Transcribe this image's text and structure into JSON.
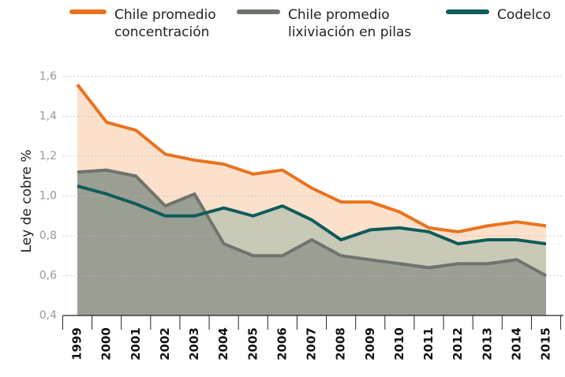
{
  "chart_data": {
    "type": "line",
    "y_label": "Ley de cobre %",
    "categories": [
      "1999",
      "2000",
      "2001",
      "2002",
      "2003",
      "2004",
      "2005",
      "2006",
      "2007",
      "2008",
      "2009",
      "2010",
      "2011",
      "2012",
      "2013",
      "2014",
      "2015"
    ],
    "series": [
      {
        "name": "Chile promedio concentración",
        "color": "#e8731e",
        "fill": "#fbe0cc",
        "values": [
          1.56,
          1.37,
          1.33,
          1.21,
          1.18,
          1.16,
          1.11,
          1.13,
          1.04,
          0.97,
          0.97,
          0.92,
          0.84,
          0.82,
          0.85,
          0.87,
          0.85
        ]
      },
      {
        "name": "Chile promedio lixiviación en pilas",
        "color": "#6f736d",
        "fill": "#9b9e92",
        "values": [
          1.12,
          1.13,
          1.1,
          0.95,
          1.01,
          0.76,
          0.7,
          0.7,
          0.78,
          0.7,
          0.68,
          0.66,
          0.64,
          0.66,
          0.66,
          0.68,
          0.6
        ]
      },
      {
        "name": "Codelco",
        "color": "#0d5c5b",
        "fill": "#c8c9b6",
        "values": [
          1.05,
          1.01,
          0.96,
          0.9,
          0.9,
          0.94,
          0.9,
          0.95,
          0.88,
          0.78,
          0.83,
          0.84,
          0.82,
          0.76,
          0.78,
          0.78,
          0.76
        ]
      }
    ],
    "ylim": [
      0.4,
      1.6
    ],
    "yticks": [
      {
        "value": 0.4,
        "label": "0,4"
      },
      {
        "value": 0.6,
        "label": "0,6"
      },
      {
        "value": 0.8,
        "label": "0,8"
      },
      {
        "value": 1.0,
        "label": "1,0"
      },
      {
        "value": 1.2,
        "label": "1,2"
      },
      {
        "value": 1.4,
        "label": "1,4"
      },
      {
        "value": 1.6,
        "label": "1,6"
      }
    ],
    "grid": true
  }
}
